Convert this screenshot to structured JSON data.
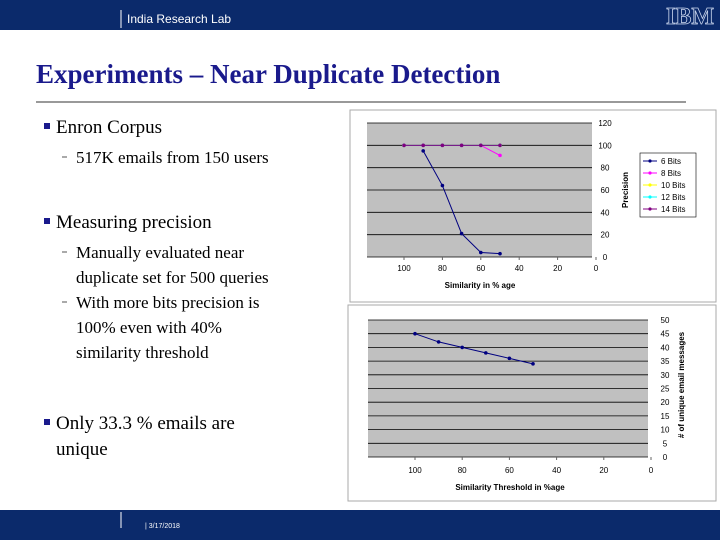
{
  "header": {
    "lab": "India Research Lab",
    "logo": "IBM"
  },
  "title": "Experiments – Near Duplicate Detection",
  "bullets": [
    {
      "text": [
        "Enron Corpus"
      ],
      "subs": [
        [
          "517K emails from 150 users"
        ]
      ]
    },
    {
      "text": [
        "Measuring precision"
      ],
      "subs": [
        [
          "Manually evaluated near",
          "duplicate set for 500 queries"
        ],
        [
          "With more bits precision is",
          "100% even with 40%",
          "similarity threshold"
        ]
      ]
    },
    {
      "text": [
        "Only 33.3 % emails are",
        "unique"
      ],
      "subs": []
    }
  ],
  "footer": {
    "date": "| 3/17/2018"
  },
  "chart_data": [
    {
      "type": "line",
      "x_label": "Similarity in % age",
      "y_label": "Precision",
      "x": [
        100,
        90,
        80,
        70,
        60,
        50
      ],
      "series": [
        {
          "name": "6 Bits",
          "color": "#000080",
          "values": [
            null,
            95,
            64,
            21,
            4,
            3
          ]
        },
        {
          "name": "8 Bits",
          "color": "#ff00ff",
          "values": [
            100,
            100,
            100,
            100,
            100,
            91
          ]
        },
        {
          "name": "10 Bits",
          "color": "#ffff00",
          "values": [
            100,
            100,
            100,
            100,
            100,
            100
          ]
        },
        {
          "name": "12 Bits",
          "color": "#00ffff",
          "values": [
            100,
            100,
            100,
            100,
            100,
            100
          ]
        },
        {
          "name": "14 Bits",
          "color": "#800080",
          "values": [
            100,
            100,
            100,
            100,
            100,
            100
          ]
        }
      ],
      "xlim": [
        100,
        0
      ],
      "xticks": [
        100,
        80,
        60,
        40,
        20,
        0
      ],
      "ylim": [
        0,
        120
      ],
      "yticks": [
        0,
        20,
        40,
        60,
        80,
        100,
        120
      ],
      "grid": true,
      "legend": "right"
    },
    {
      "type": "line",
      "x_label": "Similarity Threshold in %age",
      "y_label": "# of unique email messages",
      "x": [
        100,
        90,
        80,
        70,
        60,
        50
      ],
      "series": [
        {
          "color": "#000080",
          "values": [
            45,
            42,
            40,
            38,
            36,
            34
          ]
        }
      ],
      "xlim": [
        100,
        0
      ],
      "xticks": [
        100,
        80,
        60,
        40,
        20,
        0
      ],
      "ylim": [
        0,
        50
      ],
      "yticks": [
        0,
        5,
        10,
        15,
        20,
        25,
        30,
        35,
        40,
        45,
        50
      ],
      "grid": true
    }
  ]
}
